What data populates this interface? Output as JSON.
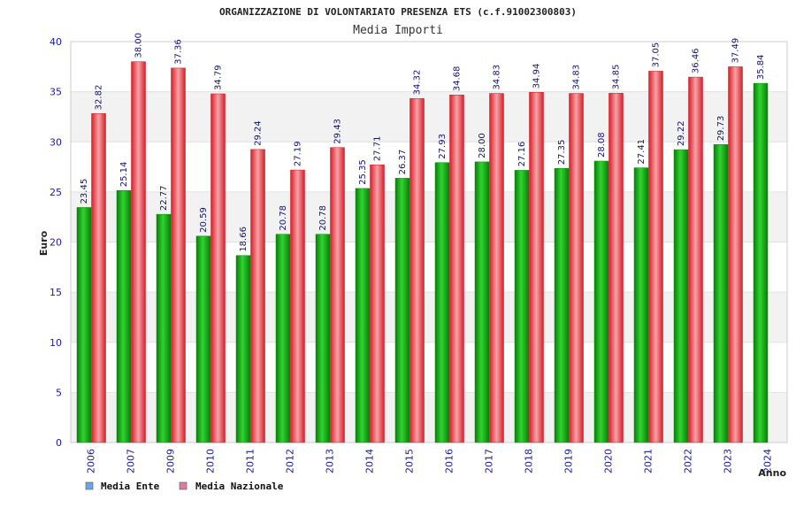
{
  "chart_data": {
    "type": "bar",
    "title": "ORGANIZZAZIONE DI VOLONTARIATO PRESENZA ETS (c.f.91002300803)",
    "subtitle": "Media Importi",
    "xlabel": "Anno",
    "ylabel": "Euro",
    "ylim": [
      0,
      40
    ],
    "yticks": [
      0,
      5,
      10,
      15,
      20,
      25,
      30,
      35,
      40
    ],
    "categories": [
      "2006",
      "2007",
      "2009",
      "2010",
      "2011",
      "2012",
      "2013",
      "2014",
      "2015",
      "2016",
      "2017",
      "2018",
      "2019",
      "2020",
      "2021",
      "2022",
      "2023",
      "2024"
    ],
    "series": [
      {
        "name": "Media Ente",
        "color": "#19b419",
        "values": [
          23.45,
          25.14,
          22.77,
          20.59,
          18.66,
          20.78,
          20.78,
          25.35,
          26.37,
          27.93,
          28.0,
          27.16,
          27.35,
          28.08,
          27.41,
          29.22,
          29.73,
          35.84
        ],
        "labels": [
          "23.45",
          "25.14",
          "22.77",
          "20.59",
          "18.66",
          "20.78",
          "20.78",
          "25.35",
          "26.37",
          "27.93",
          "28.00",
          "27.16",
          "27.35",
          "28.08",
          "27.41",
          "29.22",
          "29.73",
          "35.84"
        ]
      },
      {
        "name": "Media Nazionale",
        "color": "#e8353d",
        "values": [
          32.82,
          38.0,
          37.36,
          34.79,
          29.24,
          27.19,
          29.43,
          27.71,
          34.32,
          34.68,
          34.83,
          34.94,
          34.83,
          34.85,
          37.05,
          36.46,
          37.49,
          null
        ],
        "labels": [
          "32.82",
          "38.00",
          "37.36",
          "34.79",
          "29.24",
          "27.19",
          "29.43",
          "27.71",
          "34.32",
          "34.68",
          "34.83",
          "34.94",
          "34.83",
          "34.85",
          "37.05",
          "36.46",
          "37.49",
          ""
        ]
      }
    ],
    "legend": {
      "position": "bottom-left",
      "items": [
        {
          "label": "Media Ente",
          "color": "#6aa6e8"
        },
        {
          "label": "Media Nazionale",
          "color": "#e07aa0"
        }
      ]
    },
    "grid": true,
    "grid_band_color": "#f2f2f2",
    "axis_color": "#cccccc"
  }
}
